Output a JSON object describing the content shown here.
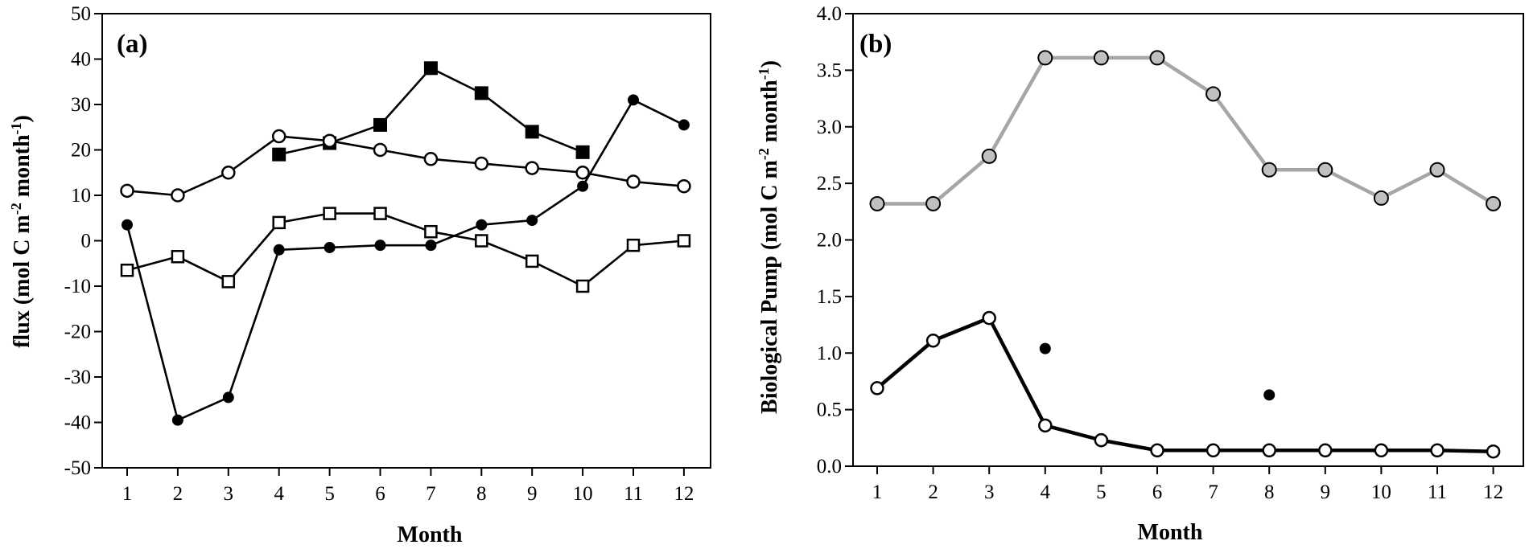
{
  "chart_data": [
    {
      "type": "line",
      "panel_label": "(a)",
      "xlabel": "Month",
      "ylabel": "flux (mol C m",
      "ylabel_sup1": "-2",
      "ylabel_mid": " month",
      "ylabel_sup2": "-1",
      "ylabel_end": ")",
      "xlim": [
        1,
        12
      ],
      "ylim": [
        -50,
        50
      ],
      "x_ticks": [
        1,
        2,
        3,
        4,
        5,
        6,
        7,
        8,
        9,
        10,
        11,
        12
      ],
      "y_ticks": [
        -50,
        -40,
        -30,
        -20,
        -10,
        0,
        10,
        20,
        30,
        40,
        50
      ],
      "grid": false,
      "series": [
        {
          "marker": "filled-square",
          "color": "#000000",
          "x": [
            4,
            5,
            6,
            7,
            8,
            9,
            10
          ],
          "values": [
            19,
            21.5,
            25.5,
            38,
            32.5,
            24,
            19.5
          ]
        },
        {
          "marker": "open-circle",
          "color": "#000000",
          "x": [
            1,
            2,
            3,
            4,
            5,
            6,
            7,
            8,
            9,
            10,
            11,
            12
          ],
          "values": [
            11,
            10,
            15,
            23,
            22,
            20,
            18,
            17,
            16,
            15,
            13,
            12
          ]
        },
        {
          "marker": "filled-circle",
          "color": "#000000",
          "x": [
            1,
            2,
            3,
            4,
            5,
            6,
            7,
            8,
            9,
            10,
            11,
            12
          ],
          "values": [
            3.5,
            -39.5,
            -34.5,
            -2,
            -1.5,
            -1,
            -1,
            3.5,
            4.5,
            12,
            31,
            25.5
          ]
        },
        {
          "marker": "open-square",
          "color": "#000000",
          "x": [
            1,
            2,
            3,
            4,
            5,
            6,
            7,
            8,
            9,
            10,
            11,
            12
          ],
          "values": [
            -6.5,
            -3.5,
            -9,
            4,
            6,
            6,
            2,
            0,
            -4.5,
            -10,
            -1,
            0
          ]
        }
      ]
    },
    {
      "type": "line",
      "panel_label": "(b)",
      "xlabel": "Month",
      "ylabel": "Biological Pump (mol C m",
      "ylabel_sup1": "-2",
      "ylabel_mid": " month",
      "ylabel_sup2": "-1",
      "ylabel_end": ")",
      "xlim": [
        1,
        12
      ],
      "ylim": [
        0,
        4
      ],
      "x_ticks": [
        1,
        2,
        3,
        4,
        5,
        6,
        7,
        8,
        9,
        10,
        11,
        12
      ],
      "y_ticks": [
        "0.0",
        "0.5",
        "1.0",
        "1.5",
        "2.0",
        "2.5",
        "3.0",
        "3.5",
        "4.0"
      ],
      "grid": false,
      "series": [
        {
          "marker": "gray-circle",
          "color": "#a6a6a6",
          "x": [
            1,
            2,
            3,
            4,
            5,
            6,
            7,
            8,
            9,
            10,
            11,
            12
          ],
          "values": [
            2.32,
            2.32,
            2.74,
            3.61,
            3.61,
            3.61,
            3.29,
            2.62,
            2.62,
            2.37,
            2.62,
            2.32
          ]
        },
        {
          "marker": "open-circle",
          "color": "#000000",
          "x": [
            1,
            2,
            3,
            4,
            5,
            6,
            7,
            8,
            9,
            10,
            11,
            12
          ],
          "values": [
            0.69,
            1.11,
            1.31,
            0.36,
            0.23,
            0.14,
            0.14,
            0.14,
            0.14,
            0.14,
            0.14,
            0.13
          ]
        },
        {
          "marker": "filled-circle",
          "color": "#000000",
          "line": false,
          "x": [
            4,
            8
          ],
          "values": [
            1.04,
            0.63
          ]
        }
      ]
    }
  ]
}
